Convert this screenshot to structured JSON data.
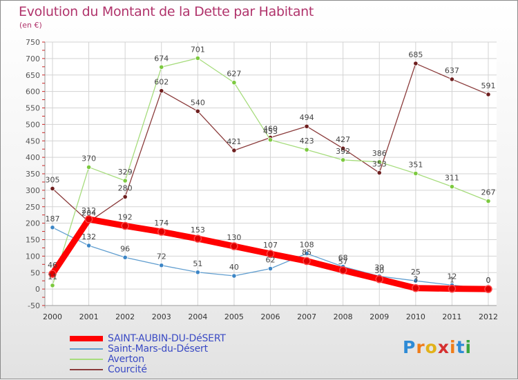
{
  "header": {
    "title": "Evolution du Montant de la Dette par Habitant",
    "subtitle": "(en €)"
  },
  "logo": {
    "text": "Proxiti",
    "letters": [
      "P",
      "r",
      "o",
      "x",
      "i",
      "t",
      "i"
    ]
  },
  "chart_data": {
    "type": "line",
    "title": "Evolution du Montant de la Dette par Habitant",
    "subtitle": "(en €)",
    "x": [
      "2000",
      "2001",
      "2002",
      "2003",
      "2004",
      "2005",
      "2006",
      "2007",
      "2008",
      "2009",
      "2010",
      "2011",
      "2012"
    ],
    "ylim": [
      -50,
      750
    ],
    "yticks": [
      -50,
      0,
      50,
      100,
      150,
      200,
      250,
      300,
      350,
      400,
      450,
      500,
      550,
      600,
      650,
      700,
      750
    ],
    "grid": true,
    "legend": "bottom-left",
    "series": [
      {
        "name": "SAINT-AUBIN-DU-DéSERT",
        "color": "#ff0000",
        "marker": "#dd0000",
        "values": [
          46,
          212,
          192,
          174,
          153,
          130,
          107,
          85,
          57,
          30,
          3,
          1,
          0
        ]
      },
      {
        "name": "Saint-Mars-du-Désert",
        "color": "#5f9dcf",
        "marker": "#3d86c6",
        "values": [
          187,
          132,
          96,
          72,
          51,
          40,
          62,
          108,
          68,
          39,
          25,
          12,
          0
        ]
      },
      {
        "name": "Averton",
        "color": "#a6dc7c",
        "marker": "#7cc93f",
        "values": [
          11,
          370,
          329,
          674,
          701,
          627,
          453,
          423,
          392,
          386,
          351,
          311,
          267
        ]
      },
      {
        "name": "Courcité",
        "color": "#8a3a3a",
        "marker": "#6e1f1f",
        "values": [
          305,
          204,
          280,
          602,
          540,
          421,
          460,
          494,
          427,
          353,
          685,
          637,
          591
        ]
      }
    ]
  }
}
